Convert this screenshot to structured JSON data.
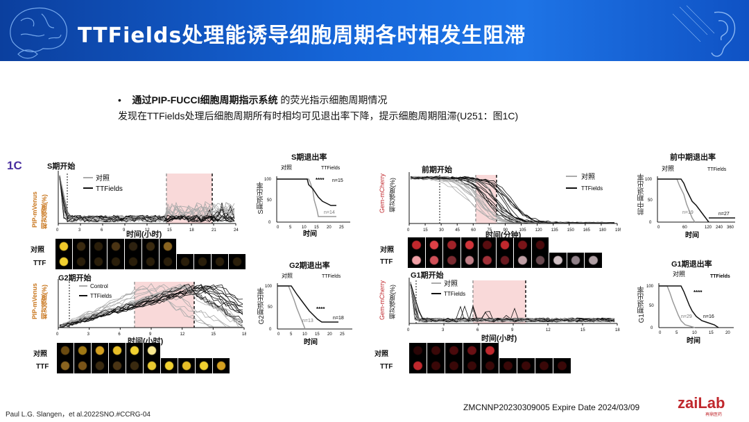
{
  "header": {
    "title": "TTFields处理能诱导细胞周期各时相发生阻滞"
  },
  "summary": {
    "bullet_symbol": "•",
    "bullet_bold": "通过PIP-FUCCI细胞周期指示系统",
    "bullet_rest": " 的荧光指示细胞周期情况",
    "line2": "发现在TTFields处理后细胞周期所有时相均可见退出率下降，提示细胞周期阻滞(U251：图1C)"
  },
  "figure": {
    "label": "1C",
    "s_phase": {
      "title": "S期开始",
      "ylabel_top": "PIP-mVenus",
      "ylabel_bottom": "相对强度(%)",
      "xlabel": "时间(小时)",
      "legend": [
        "对照",
        "TTFields"
      ],
      "ticks": [
        "0",
        "3",
        "6",
        "9",
        "12",
        "15",
        "18",
        "21",
        "24"
      ]
    },
    "s_exit": {
      "title": "S期退出率",
      "ylabel": "S期退出率",
      "xlabel": "时间",
      "legend": [
        "对照",
        "TTFields"
      ],
      "n_ctrl": "n=14",
      "n_ttf": "n=15",
      "sig": "****",
      "xticks": [
        "0",
        "5",
        "10",
        "15",
        "20",
        "25"
      ],
      "yticks": [
        "0",
        "50",
        "100"
      ]
    },
    "prophase": {
      "title": "前期开始",
      "ylabel_top": "Gem-mCherry",
      "ylabel_bottom": "相对强度(%)",
      "xlabel": "时间(分钟)",
      "legend": [
        "对照",
        "TTFields"
      ],
      "ticks": [
        "0",
        "15",
        "30",
        "45",
        "60",
        "75",
        "90",
        "105",
        "120",
        "135",
        "150",
        "165",
        "180",
        "195"
      ]
    },
    "prometa_exit": {
      "title": "前中期退出率",
      "ylabel": "前中期退出率",
      "xlabel": "时间",
      "legend": [
        "对照",
        "TTFields"
      ],
      "n_ctrl": "n=19",
      "n_ttf": "n=27",
      "xticks": [
        "0",
        "60",
        "120",
        "240",
        "360"
      ],
      "yticks": [
        "0",
        "50",
        "100"
      ]
    },
    "g2_phase": {
      "title": "G2期开始",
      "ylabel_top": "PIP-mVenus",
      "ylabel_bottom": "相对强度(%)",
      "xlabel": "时间(小时)",
      "legend": [
        "Control",
        "TTFields"
      ],
      "ticks": [
        "0",
        "3",
        "6",
        "9",
        "12",
        "15",
        "18"
      ]
    },
    "g2_exit": {
      "title": "G2期退出率",
      "ylabel": "G2期退出率",
      "xlabel": "时间",
      "legend": [
        "对照",
        "TTFields"
      ],
      "n_ctrl": "n=13",
      "n_ttf": "n=18",
      "sig": "****",
      "xticks": [
        "0",
        "5",
        "10",
        "15",
        "20",
        "25"
      ],
      "yticks": [
        "0",
        "50",
        "100"
      ]
    },
    "g1_phase": {
      "title": "G1期开始",
      "ylabel_top": "Gem-mCherry",
      "ylabel_bottom": "相对强度(%)",
      "xlabel": "时间(小时)",
      "legend": [
        "对照",
        "TTFields"
      ],
      "ticks": [
        "0",
        "3",
        "6",
        "9",
        "12",
        "15",
        "18"
      ]
    },
    "g1_exit": {
      "title": "G1期退出率",
      "ylabel": "G1期退出率",
      "xlabel": "时间",
      "legend": [
        "对照",
        "TTFields"
      ],
      "n_ctrl": "n=29",
      "n_ttf": "n=16",
      "sig": "****",
      "xticks": [
        "0",
        "5",
        "10",
        "15",
        "20"
      ],
      "yticks": [
        "0",
        "50",
        "100"
      ]
    },
    "row_labels": {
      "ctrl": "对照",
      "ttf": "TTF"
    }
  },
  "footer": {
    "citation": "Paul L.G. Slangen，et al.2022SNO.#CCRG-04",
    "code": "ZMCNNP20230309005 Expire Date 2024/03/09",
    "logo_text": "zaiLab",
    "logo_sub": "再鼎医药"
  },
  "colors": {
    "banner": "#1565d8",
    "label_purple": "#4a2fa0",
    "venus_label": "#c8751c",
    "cherry_label": "#c0282d",
    "shade": "#f9d9d9"
  }
}
